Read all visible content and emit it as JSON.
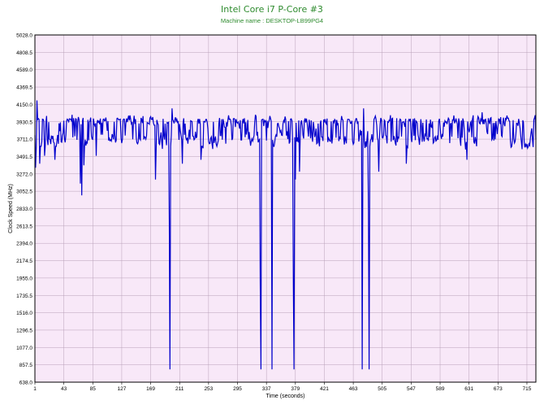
{
  "chart_data": {
    "type": "line",
    "title": "Intel Core i7 P-Core #3",
    "subtitle": "Machine name : DESKTOP-LB99PG4",
    "xlabel": "Time (seconds)",
    "ylabel": "Clock Speed (MHz)",
    "xlim": [
      1,
      728
    ],
    "ylim": [
      638.0,
      5028.0
    ],
    "grid": true,
    "x_ticks": [
      "1",
      "43",
      "85",
      "127",
      "169",
      "211",
      "253",
      "295",
      "337",
      "379",
      "421",
      "463",
      "505",
      "547",
      "589",
      "631",
      "673",
      "715"
    ],
    "y_ticks": [
      "638.0",
      "857.5",
      "1077.0",
      "1296.5",
      "1516.0",
      "1735.5",
      "1955.0",
      "2174.5",
      "2394.0",
      "2613.5",
      "2833.0",
      "3052.5",
      "3272.0",
      "3491.5",
      "3711.0",
      "3930.5",
      "4150.0",
      "4369.5",
      "4589.0",
      "4808.5",
      "5028.0"
    ],
    "series": [
      {
        "color": "#0000cc",
        "baseline_mhz": 3800,
        "spikes": [
          {
            "x": 2,
            "value": 3350
          },
          {
            "x": 4,
            "value": 4200
          },
          {
            "x": 8,
            "value": 3400
          },
          {
            "x": 15,
            "value": 3500
          },
          {
            "x": 30,
            "value": 3450
          },
          {
            "x": 67,
            "value": 3150
          },
          {
            "x": 69,
            "value": 3000
          },
          {
            "x": 72,
            "value": 3380
          },
          {
            "x": 90,
            "value": 3500
          },
          {
            "x": 176,
            "value": 3200
          },
          {
            "x": 196,
            "value": 2700
          },
          {
            "x": 197,
            "value": 800
          },
          {
            "x": 200,
            "value": 4100
          },
          {
            "x": 215,
            "value": 3400
          },
          {
            "x": 242,
            "value": 3450
          },
          {
            "x": 328,
            "value": 1900
          },
          {
            "x": 329,
            "value": 800
          },
          {
            "x": 345,
            "value": 800
          },
          {
            "x": 376,
            "value": 1850
          },
          {
            "x": 377,
            "value": 800
          },
          {
            "x": 379,
            "value": 3200
          },
          {
            "x": 385,
            "value": 3300
          },
          {
            "x": 476,
            "value": 800
          },
          {
            "x": 478,
            "value": 4100
          },
          {
            "x": 485,
            "value": 2800
          },
          {
            "x": 486,
            "value": 800
          },
          {
            "x": 500,
            "value": 3300
          },
          {
            "x": 540,
            "value": 3400
          },
          {
            "x": 628,
            "value": 3450
          },
          {
            "x": 650,
            "value": 4050
          }
        ]
      }
    ]
  }
}
